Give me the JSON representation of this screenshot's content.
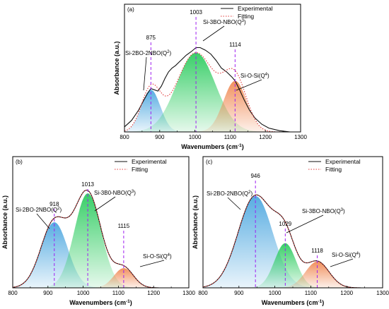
{
  "chart_data": [
    {
      "panel_label": "(a)",
      "type": "area",
      "xlabel": "Wavenumbers (cm",
      "xlabel_unit_sup": "-1",
      "xlabel_close": ")",
      "ylabel": "Absorbance (a.u.)",
      "xlim": [
        800,
        1300
      ],
      "x_ticks": [
        "800",
        "900",
        "1000",
        "1100",
        "1200",
        "1300"
      ],
      "legend": {
        "placement": "top-right",
        "experimental": "Experimental",
        "fitting": "Fitting"
      },
      "components": [
        {
          "name": "Si-2BO-2NBO(Q",
          "sup": "2",
          "close": ")",
          "center": 875,
          "peak_label": "875",
          "amplitude": 0.33,
          "sigma": 27,
          "color": "#4fa8e0"
        },
        {
          "name": "Si-3BO-NBO(Q",
          "sup": "3",
          "close": ")",
          "center": 1003,
          "peak_label": "1003",
          "amplitude": 0.62,
          "sigma": 55,
          "color": "#2ecc60"
        },
        {
          "name": "Si-O-Si(Q",
          "sup": "4",
          "close": ")",
          "center": 1114,
          "peak_label": "1114",
          "amplitude": 0.4,
          "sigma": 33,
          "color": "#f08a55"
        }
      ],
      "experimental_curve": {
        "x": [
          800,
          820,
          840,
          855,
          865,
          875,
          885,
          895,
          905,
          915,
          925,
          935,
          945,
          960,
          975,
          990,
          1003,
          1015,
          1030,
          1045,
          1060,
          1075,
          1090,
          1105,
          1114,
          1125,
          1140,
          1155,
          1170,
          1190,
          1210,
          1240,
          1270,
          1300
        ],
        "y": [
          0.04,
          0.09,
          0.17,
          0.25,
          0.3,
          0.34,
          0.33,
          0.32,
          0.36,
          0.42,
          0.47,
          0.5,
          0.52,
          0.56,
          0.6,
          0.63,
          0.66,
          0.66,
          0.64,
          0.61,
          0.56,
          0.5,
          0.47,
          0.43,
          0.4,
          0.34,
          0.25,
          0.17,
          0.11,
          0.06,
          0.03,
          0.01,
          0.0,
          0.0
        ]
      }
    },
    {
      "panel_label": "(b)",
      "type": "area",
      "xlabel": "Wavenumbers (cm",
      "xlabel_unit_sup": "-1",
      "xlabel_close": ")",
      "ylabel": "Absorbance (a.u.)",
      "xlim": [
        800,
        1300
      ],
      "x_ticks": [
        "800",
        "900",
        "1000",
        "1100",
        "1200",
        "1300"
      ],
      "legend": {
        "placement": "top-right",
        "experimental": "Experimental",
        "fitting": "Fitting"
      },
      "components": [
        {
          "name": "Si-2BO-2NBO(Q",
          "sup": "2",
          "close": ")",
          "center": 918,
          "peak_label": "918",
          "amplitude": 0.5,
          "sigma": 38,
          "color": "#4fa8e0"
        },
        {
          "name": "Si-3B0-NBO(Q",
          "sup": "3",
          "close": ")",
          "center": 1013,
          "peak_label": "1013",
          "amplitude": 0.72,
          "sigma": 38,
          "color": "#2ecc60"
        },
        {
          "name": "Si-O-Si(Q",
          "sup": "4",
          "close": ")",
          "center": 1115,
          "peak_label": "1115",
          "amplitude": 0.15,
          "sigma": 28,
          "color": "#f08a55"
        }
      ]
    },
    {
      "panel_label": "(c)",
      "type": "area",
      "xlabel": "Wavenumbers (cm",
      "xlabel_unit_sup": "-1",
      "xlabel_close": ")",
      "ylabel": "Absorbance (a.u.)",
      "xlim": [
        800,
        1300
      ],
      "x_ticks": [
        "800",
        "900",
        "1000",
        "1100",
        "1200",
        "1300"
      ],
      "legend": {
        "placement": "top-right",
        "experimental": "Experimental",
        "fitting": "Fitting"
      },
      "components": [
        {
          "name": "Si-2BO-2NBO(Q",
          "sup": "2",
          "close": ")",
          "center": 946,
          "peak_label": "946",
          "amplitude": 0.7,
          "sigma": 48,
          "color": "#4fa8e0"
        },
        {
          "name": "Si-3BO-NBO(Q",
          "sup": "3",
          "close": ")",
          "center": 1029,
          "peak_label": "1029",
          "amplitude": 0.34,
          "sigma": 30,
          "color": "#2ecc60"
        },
        {
          "name": "Si-O-Si(Q",
          "sup": "4",
          "close": ")",
          "center": 1118,
          "peak_label": "1118",
          "amplitude": 0.2,
          "sigma": 33,
          "color": "#f08a55"
        }
      ]
    }
  ]
}
